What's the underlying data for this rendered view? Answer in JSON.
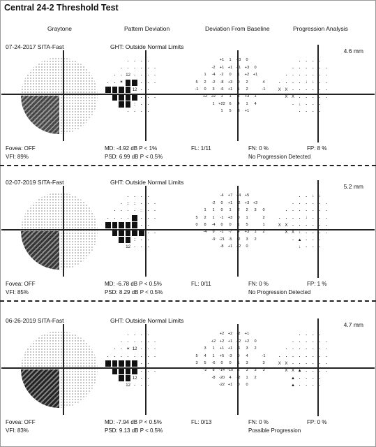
{
  "title": "Central 24-2 Threshold Test",
  "columns": [
    "Graytone",
    "Pattern Deviation",
    "Deviation From Baseline",
    "Progression Analysis"
  ],
  "tests": [
    {
      "date": "07-24-2017 SITA-Fast",
      "ght": "GHT: Outside Normal Limits",
      "mm": "4.6 mm",
      "fovea": "Fovea: OFF",
      "vfi": "VFI: 89%",
      "md": "MD: -4.92 dB P < 1%",
      "psd": "PSD: 6.99 dB P < 0.5%",
      "fl": "FL: 1/11",
      "fn": "FN: 0 %",
      "fp": "FP: 8 %",
      "result": "No Progression Detected",
      "pd": [
        [
          "",
          "",
          "",
          "·",
          "·",
          "·",
          "·",
          ""
        ],
        [
          "",
          "",
          "·",
          "·",
          "·",
          "·",
          "·",
          "·"
        ],
        [
          "",
          "·",
          "·",
          "12",
          "·",
          "·",
          "·",
          "·",
          ""
        ],
        [
          "·",
          "·",
          "✶",
          "B",
          "B",
          "·",
          "·",
          "·",
          ""
        ],
        [
          "B",
          "B",
          "B",
          "B",
          "12",
          "·",
          "·",
          ""
        ],
        [
          "",
          "B",
          "B",
          "B",
          "B",
          "·",
          "·",
          "·",
          ""
        ],
        [
          "",
          "",
          "B",
          "B",
          "::",
          "·",
          "·",
          ""
        ],
        [
          "",
          "",
          "",
          "·",
          "·",
          "·",
          "·",
          ""
        ]
      ],
      "dev": [
        [
          "",
          "",
          "",
          "+1",
          "1",
          "+3",
          "0",
          ""
        ],
        [
          "",
          "",
          "-2",
          "+1",
          "+1",
          "+1",
          "+3",
          "0"
        ],
        [
          "",
          "1",
          "-4",
          "-2",
          "0",
          "1",
          "+2",
          "+1"
        ],
        [
          "5",
          "2",
          "-2",
          "-8",
          "+3",
          "0",
          "2",
          "",
          "4"
        ],
        [
          "-1",
          "0",
          "3",
          "-6",
          "+1",
          "1",
          "2",
          "",
          "-1"
        ],
        [
          "",
          "12",
          "22",
          "1",
          "1",
          "4",
          "+3",
          "1"
        ],
        [
          "",
          "",
          "1",
          "+22",
          "6",
          "4",
          "1",
          "4"
        ],
        [
          "",
          "",
          "",
          "1",
          "5",
          "3",
          "+1",
          ""
        ]
      ],
      "prog": [
        [
          "",
          "",
          "",
          "·",
          "·",
          "·",
          "·",
          ""
        ],
        [
          "",
          "",
          "·",
          "·",
          "·",
          "·",
          "·",
          "·"
        ],
        [
          "",
          "·",
          "·",
          "·",
          "·",
          "·",
          "·",
          "·"
        ],
        [
          "·",
          "·",
          "·",
          "·",
          "↓",
          "↓",
          "·",
          "·"
        ],
        [
          "X",
          "X",
          "·",
          "·",
          "·",
          "·",
          "·",
          "·"
        ],
        [
          "",
          "X",
          "X",
          "·",
          "·",
          "·",
          "·",
          "·"
        ],
        [
          "",
          "",
          "·",
          "↓",
          "·",
          "·",
          "·",
          ""
        ],
        [
          "",
          "",
          "",
          "·",
          "·",
          "·",
          "·",
          ""
        ]
      ]
    },
    {
      "date": "02-07-2019 SITA-Fast",
      "ght": "GHT: Outside Normal Limits",
      "mm": "5.2 mm",
      "fovea": "Fovea: OFF",
      "vfi": "VFI: 85%",
      "md": "MD: -6.78 dB P < 0.5%",
      "psd": "PSD: 8.29 dB P < 0.5%",
      "fl": "FL: 0/11",
      "fn": "FN: 0 %",
      "fp": "FP: 1 %",
      "result": "No Progression Detected",
      "pd": [
        [
          "",
          "",
          "",
          "·",
          "·",
          "·",
          "·",
          ""
        ],
        [
          "",
          "",
          "·",
          "::",
          "::",
          "·",
          "·",
          "·"
        ],
        [
          "",
          "·",
          "·",
          "·",
          "·",
          "::",
          "·",
          "·"
        ],
        [
          "·",
          "·",
          "·",
          "·",
          "B",
          "·",
          "·",
          "·"
        ],
        [
          "B",
          "B",
          "B",
          "B",
          "B",
          "·",
          "·",
          ""
        ],
        [
          "",
          "B",
          "B",
          "B",
          "B",
          "B",
          "·",
          "·"
        ],
        [
          "",
          "",
          "B",
          "B",
          "::",
          "·",
          "·",
          ""
        ],
        [
          "",
          "",
          "",
          "12",
          "·",
          "·",
          "·",
          ""
        ]
      ],
      "dev": [
        [
          "",
          "",
          "",
          "-4",
          "+7",
          "+4",
          "+5",
          ""
        ],
        [
          "",
          "",
          "-2",
          "0",
          "+1",
          "-2",
          "+3",
          "+2"
        ],
        [
          "",
          "1",
          "1",
          "0",
          "1",
          "2",
          "2",
          "3",
          "0"
        ],
        [
          "5",
          "2",
          "1",
          "-1",
          "+3",
          "0",
          "1",
          "",
          "2"
        ],
        [
          "0",
          "8",
          "-4",
          "0",
          "0",
          "1",
          "5",
          "",
          "1"
        ],
        [
          "",
          "-4",
          "9",
          "-1",
          "-7",
          "4",
          "+3",
          "1",
          "2"
        ],
        [
          "",
          "",
          "-9",
          "-21",
          "-5",
          "-2",
          "3",
          "2"
        ],
        [
          "",
          "",
          "",
          "-8",
          "+1",
          "+2",
          "0",
          ""
        ]
      ],
      "prog": [
        [
          "",
          "",
          "",
          "·",
          "·",
          "↓",
          "↓",
          ""
        ],
        [
          "",
          "",
          "·",
          "·",
          "·",
          "·",
          "·",
          "·"
        ],
        [
          "",
          "·",
          "·",
          "·",
          "·",
          "·",
          "·",
          "·"
        ],
        [
          "·",
          "·",
          "·",
          "·",
          "↓",
          "·",
          "·",
          "·"
        ],
        [
          "X",
          "X",
          "·",
          "·",
          "·",
          "·",
          "·",
          "·"
        ],
        [
          "",
          "X",
          "X",
          "↓",
          "·",
          "·",
          "·",
          "·"
        ],
        [
          "",
          "",
          "·",
          "▲",
          "·",
          "·",
          "·",
          ""
        ],
        [
          "",
          "",
          "",
          "↓",
          "·",
          "·",
          "·",
          ""
        ]
      ]
    },
    {
      "date": "06-26-2019 SITA-Fast",
      "ght": "GHT: Outside Normal Limits",
      "mm": "4.7 mm",
      "fovea": "Fovea: OFF",
      "vfi": "VFI: 83%",
      "md": "MD: -7.94 dB P < 0.5%",
      "psd": "PSD: 9.13 dB P < 0.5%",
      "fl": "FL: 0/13",
      "fn": "FN: 0 %",
      "fp": "FP: 0 %",
      "result": "Possible Progression",
      "pd": [
        [
          "",
          "",
          "",
          "·",
          "·",
          "·",
          "·",
          ""
        ],
        [
          "",
          "",
          "·",
          "·",
          "·",
          "·",
          "·",
          "·"
        ],
        [
          "",
          "·",
          "·",
          "✶",
          "12",
          "·",
          "·",
          "·"
        ],
        [
          "·",
          "·",
          "·",
          "·",
          "·",
          "·",
          "·",
          "·"
        ],
        [
          "B",
          "B",
          "B",
          "B",
          "B",
          "·",
          "·",
          ""
        ],
        [
          "",
          "B",
          "B",
          "B",
          "B",
          "·",
          "·",
          "·"
        ],
        [
          "",
          "",
          "B",
          "B",
          "12",
          "·",
          "·",
          ""
        ],
        [
          "",
          "",
          "",
          "12",
          "·",
          "·",
          "·",
          ""
        ]
      ],
      "dev": [
        [
          "",
          "",
          "",
          "+2",
          "+2",
          "-2",
          "+1",
          ""
        ],
        [
          "",
          "",
          "+2",
          "+2",
          "+1",
          "+2",
          "+2",
          "0"
        ],
        [
          "",
          "3",
          "1",
          "+1",
          "+1",
          "-1",
          "3",
          "2"
        ],
        [
          "5",
          "4",
          "1",
          "+5",
          "-3",
          "0",
          "4",
          "",
          "-1"
        ],
        [
          "3",
          "5",
          "-6",
          "0",
          "0",
          "1",
          "3",
          "",
          "3"
        ],
        [
          "",
          "-2",
          "8",
          "-14",
          "-10",
          "2",
          "3",
          "3",
          "3"
        ],
        [
          "",
          "",
          "-8",
          "-20",
          "4",
          "-2",
          "1",
          "2"
        ],
        [
          "",
          "",
          "",
          "-22",
          "+1",
          "0",
          "0",
          ""
        ]
      ],
      "prog": [
        [
          "",
          "",
          "",
          "·",
          "·",
          "·",
          "·",
          ""
        ],
        [
          "",
          "",
          "·",
          "·",
          "·",
          "·",
          "·",
          "·"
        ],
        [
          "",
          "·",
          "·",
          "·",
          "·",
          "·",
          "·",
          "·"
        ],
        [
          "·",
          "·",
          "·",
          "·",
          "·",
          "·",
          "·",
          "·"
        ],
        [
          "X",
          "X",
          "·",
          "·",
          "·",
          "·",
          "·",
          "·"
        ],
        [
          "",
          "X",
          "X",
          "▲",
          "·",
          "·",
          "·",
          "·"
        ],
        [
          "",
          "",
          "▲",
          "·",
          "·",
          "·",
          "·",
          ""
        ],
        [
          "",
          "",
          "▲",
          "·",
          "·",
          "·",
          "·",
          ""
        ]
      ]
    }
  ]
}
